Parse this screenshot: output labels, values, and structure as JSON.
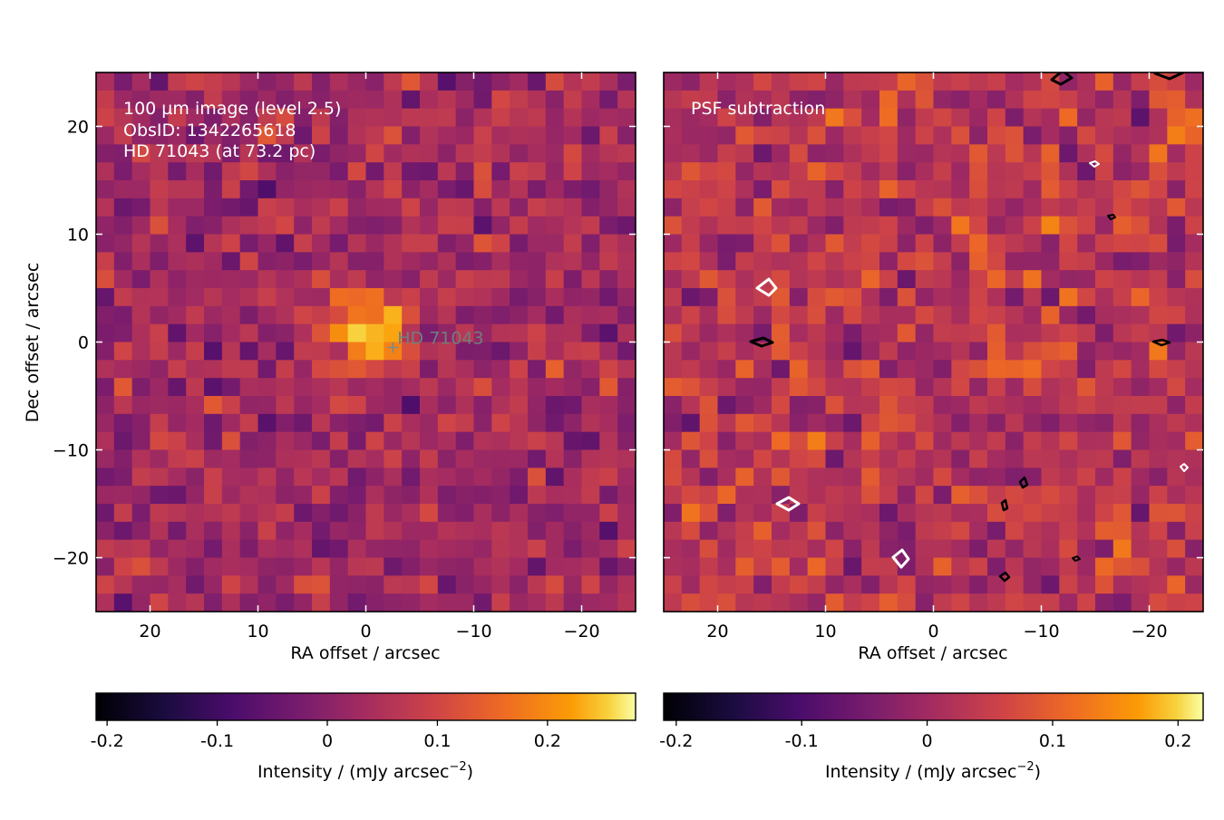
{
  "chart_data": [
    {
      "type": "heatmap",
      "annotations": [
        "100 µm image (level 2.5)",
        "ObsID: 1342265618",
        "HD 71043 (at 73.2 pc)"
      ],
      "star_label": "HD  71043",
      "xlabel": "RA offset / arcsec",
      "ylabel": "Dec offset / arcsec",
      "xlim": [
        25,
        -25
      ],
      "ylim": [
        -25,
        25
      ],
      "x_ticks": [
        20,
        10,
        0,
        -10,
        -20
      ],
      "y_ticks": [
        20,
        10,
        0,
        -10,
        -20
      ],
      "x_tick_labels": [
        "20",
        "10",
        "0",
        "−10",
        "−20"
      ],
      "y_tick_labels": [
        "20",
        "10",
        "0",
        "−10",
        "−20"
      ],
      "grid": false,
      "colormap": "inferno",
      "colorbar": {
        "label": "Intensity / (mJy arcsec",
        "label_exponent": "−2",
        "label_close": ")",
        "range": [
          -0.21,
          0.28
        ],
        "ticks": [
          -0.2,
          -0.1,
          0,
          0.1,
          0.2
        ],
        "tick_labels": [
          "-0.2",
          "-0.1",
          "0",
          "0.1",
          "0.2"
        ]
      },
      "star_position": [
        -2.5,
        -0.5
      ],
      "source_peak": {
        "ra": 0.0,
        "dec": 1.0,
        "peak": 0.28
      }
    },
    {
      "type": "heatmap",
      "annotations": [
        "PSF subtraction"
      ],
      "xlabel": "RA offset / arcsec",
      "ylabel": "",
      "xlim": [
        25,
        -25
      ],
      "ylim": [
        -25,
        25
      ],
      "x_ticks": [
        20,
        10,
        0,
        -10,
        -20
      ],
      "x_tick_labels": [
        "20",
        "10",
        "0",
        "−10",
        "−20"
      ],
      "grid": false,
      "colormap": "inferno",
      "contours": "black and white contours",
      "colorbar": {
        "label": "Intensity / (mJy arcsec",
        "label_exponent": "−2",
        "label_close": ")",
        "range": [
          -0.21,
          0.22
        ],
        "ticks": [
          -0.2,
          -0.1,
          0,
          0.1,
          0.2
        ],
        "tick_labels": [
          "-0.2",
          "-0.1",
          "0",
          "0.1",
          "0.2"
        ]
      }
    }
  ]
}
